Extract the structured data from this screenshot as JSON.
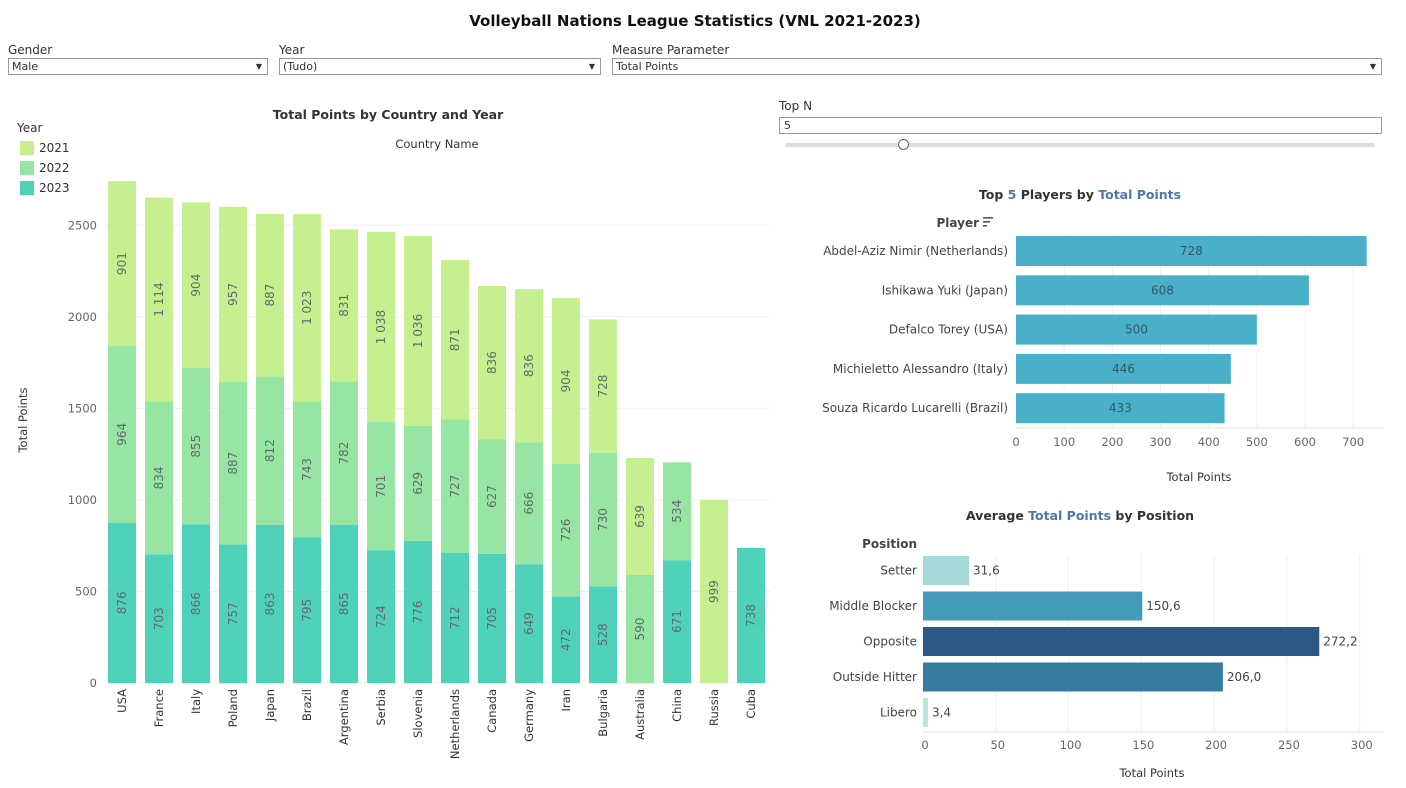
{
  "title": "Volleyball Nations League Statistics (VNL 2021-2023)",
  "filters": {
    "gender": {
      "label": "Gender",
      "value": "Male"
    },
    "year": {
      "label": "Year",
      "value": "(Tudo)"
    },
    "measure": {
      "label": "Measure Parameter",
      "value": "Total Points"
    }
  },
  "topn": {
    "label": "Top N",
    "value": "5",
    "slider_fraction": 0.2
  },
  "legend": {
    "title": "Year",
    "items": [
      {
        "label": "2021",
        "color": "#c6f08f"
      },
      {
        "label": "2022",
        "color": "#96e5a3"
      },
      {
        "label": "2023",
        "color": "#50d2b9"
      }
    ]
  },
  "chart_data": [
    {
      "type": "bar",
      "stacked": true,
      "title": "Total Points by Country and Year",
      "column_header": "Country Name",
      "ylabel": "Total Points",
      "ylim": [
        0,
        2750
      ],
      "yticks": [
        0,
        500,
        1000,
        1500,
        2000,
        2500
      ],
      "ytick_labels": [
        "0",
        "500",
        "1000",
        "1500",
        "2000",
        "2500"
      ],
      "categories": [
        "USA",
        "France",
        "Italy",
        "Poland",
        "Japan",
        "Brazil",
        "Argentina",
        "Serbia",
        "Slovenia",
        "Netherlands",
        "Canada",
        "Germany",
        "Iran",
        "Bulgaria",
        "Australia",
        "China",
        "Russia",
        "Cuba"
      ],
      "series": [
        {
          "name": "2023",
          "color": "#50d2b9",
          "values": [
            876,
            703,
            866,
            757,
            863,
            795,
            865,
            724,
            776,
            712,
            705,
            649,
            472,
            528,
            null,
            671,
            null,
            738
          ],
          "labels": [
            "876",
            "703",
            "866",
            "757",
            "863",
            "795",
            "865",
            "724",
            "776",
            "712",
            "705",
            "649",
            "472",
            "528",
            "",
            "671",
            "",
            "738"
          ]
        },
        {
          "name": "2022",
          "color": "#96e5a3",
          "values": [
            964,
            834,
            855,
            887,
            812,
            743,
            782,
            701,
            629,
            727,
            627,
            666,
            726,
            730,
            590,
            534,
            null,
            null
          ],
          "labels": [
            "964",
            "834",
            "855",
            "887",
            "812",
            "743",
            "782",
            "701",
            "629",
            "727",
            "627",
            "666",
            "726",
            "730",
            "590",
            "534",
            "",
            ""
          ]
        },
        {
          "name": "2021",
          "color": "#c6f08f",
          "values": [
            901,
            1114,
            904,
            957,
            887,
            1023,
            831,
            1038,
            1036,
            871,
            836,
            836,
            904,
            728,
            639,
            null,
            999,
            null
          ],
          "labels": [
            "901",
            "1 114",
            "904",
            "957",
            "887",
            "1 023",
            "831",
            "1 038",
            "1 036",
            "871",
            "836",
            "836",
            "904",
            "728",
            "639",
            "",
            "999",
            ""
          ]
        }
      ]
    },
    {
      "type": "bar",
      "orientation": "horizontal",
      "title_parts": [
        "Top ",
        "5",
        " Players by ",
        "Total Points"
      ],
      "row_header": "Player",
      "xlabel": "Total Points",
      "xlim": [
        0,
        760
      ],
      "xticks": [
        0,
        100,
        200,
        300,
        400,
        500,
        600,
        700
      ],
      "xtick_labels": [
        "0",
        "100",
        "200",
        "300",
        "400",
        "500",
        "600",
        "700"
      ],
      "color": "#4aafc9",
      "categories": [
        "Abdel-Aziz Nimir (Netherlands)",
        "Ishikawa Yuki (Japan)",
        "Defalco Torey (USA)",
        "Michieletto Alessandro (Italy)",
        "Souza Ricardo Lucarelli (Brazil)"
      ],
      "values": [
        728,
        608,
        500,
        446,
        433
      ],
      "labels": [
        "728",
        "608",
        "500",
        "446",
        "433"
      ]
    },
    {
      "type": "bar",
      "orientation": "horizontal",
      "title_parts": [
        "Average ",
        "Total Points",
        " by Position"
      ],
      "row_header": "Position",
      "xlabel": "Total Points",
      "xlim": [
        0,
        310
      ],
      "xticks": [
        0,
        50,
        100,
        150,
        200,
        250,
        300
      ],
      "xtick_labels": [
        "0",
        "50",
        "100",
        "150",
        "200",
        "250",
        "300"
      ],
      "categories": [
        "Setter",
        "Middle Blocker",
        "Opposite",
        "Outside Hitter",
        "Libero"
      ],
      "values": [
        31.6,
        150.6,
        272.2,
        206.0,
        3.4
      ],
      "labels": [
        "31,6",
        "150,6",
        "272,2",
        "206,0",
        "3,4"
      ],
      "colors": [
        "#a5d8d6",
        "#429bb8",
        "#2c5985",
        "#357c9e",
        "#bfe4df"
      ]
    }
  ]
}
